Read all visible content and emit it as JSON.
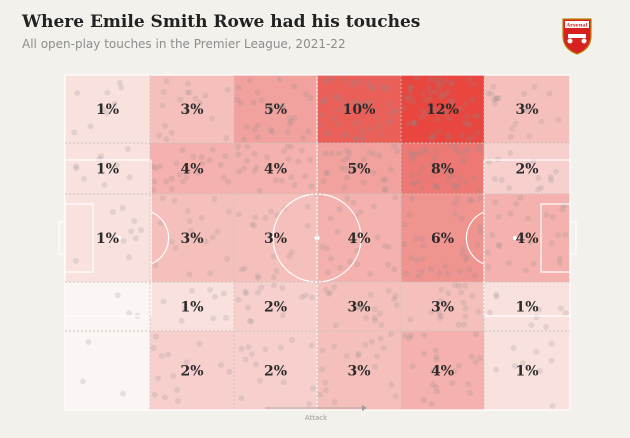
{
  "title": "Where Emile Smith Rowe had his touches",
  "subtitle": "All open-play touches in the Premier League, 2021-22",
  "crest": {
    "name": "arsenal-crest-icon",
    "text": "Arsenal",
    "color": "#d6211f"
  },
  "direction_label": "Attack",
  "colors": {
    "cell_base": "#fbf6f4",
    "cell_hot": "#e8463f",
    "line": "#ffffff",
    "dot": "#8c8c8c"
  },
  "chart_data": {
    "type": "heatmap",
    "rows": 5,
    "cols": 6,
    "direction": "left-to-right",
    "values": [
      [
        1,
        3,
        5,
        10,
        12,
        3
      ],
      [
        1,
        4,
        4,
        5,
        8,
        2
      ],
      [
        1,
        3,
        3,
        4,
        6,
        4
      ],
      [
        null,
        1,
        2,
        3,
        3,
        1
      ],
      [
        null,
        2,
        2,
        3,
        4,
        1
      ]
    ],
    "unit": "%"
  }
}
